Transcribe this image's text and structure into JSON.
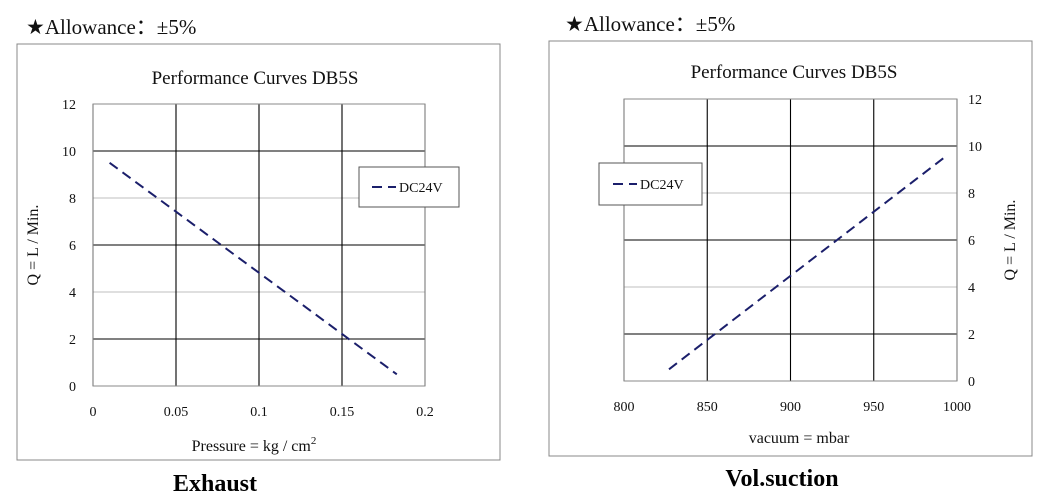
{
  "chart_data": [
    {
      "type": "line",
      "caption": "Exhaust",
      "allowance": "★Allowance：±5%",
      "title": "Performance Curves  DB5S",
      "xlabel": "Pressure = kg / cm",
      "xlabel_sup": "2",
      "ylabel": "Q = L / Min.",
      "xlim": [
        0,
        0.2
      ],
      "ylim": [
        0,
        12
      ],
      "xticks": [
        0,
        0.05,
        0.1,
        0.15,
        0.2
      ],
      "xtick_labels": [
        "0",
        "0.05",
        "0.1",
        "0.15",
        "0.2"
      ],
      "yticks": [
        0,
        2,
        4,
        6,
        8,
        10,
        12
      ],
      "ytick_labels": [
        "0",
        "2",
        "4",
        "6",
        "8",
        "10",
        "12"
      ],
      "yaxis_side": "left",
      "legend_position": "right",
      "series": [
        {
          "name": "DC24V",
          "color": "#1b1f6b",
          "style": "dashed",
          "x": [
            0.01,
            0.183
          ],
          "y": [
            9.5,
            0.5
          ]
        }
      ]
    },
    {
      "type": "line",
      "caption": "Vol.suction",
      "allowance": "★Allowance：±5%",
      "title": "Performance Curves  DB5S",
      "xlabel": "vacuum = mbar",
      "xlabel_sup": "",
      "ylabel": "Q = L / Min.",
      "xlim": [
        800,
        1000
      ],
      "ylim": [
        0,
        12
      ],
      "xticks": [
        800,
        850,
        900,
        950,
        1000
      ],
      "xtick_labels": [
        "800",
        "850",
        "900",
        "950",
        "1000"
      ],
      "yticks": [
        0,
        2,
        4,
        6,
        8,
        10,
        12
      ],
      "ytick_labels": [
        "0",
        "2",
        "4",
        "6",
        "8",
        "10",
        "12"
      ],
      "yaxis_side": "right",
      "legend_position": "left",
      "series": [
        {
          "name": "DC24V",
          "color": "#1b1f6b",
          "style": "dashed",
          "x": [
            827,
            994
          ],
          "y": [
            0.5,
            9.6
          ]
        }
      ]
    }
  ]
}
